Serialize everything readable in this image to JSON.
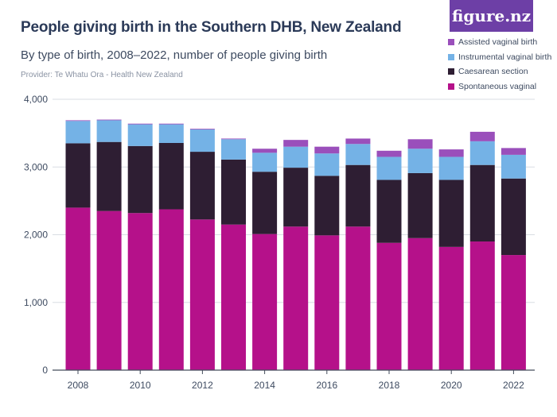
{
  "header": {
    "title": "People giving birth in the Southern DHB, New Zealand",
    "subtitle": "By type of birth, 2008–2022, number of people giving birth",
    "provider": "Provider: Te Whatu Ora - Health New Zealand",
    "logo_text": "figure.nz"
  },
  "colors": {
    "spontaneous": "#b5118a",
    "caesarean": "#2e1e33",
    "instrumental": "#74b2e6",
    "assisted": "#9a4fbb",
    "grid": "#d9dde3",
    "axis": "#444d5c",
    "brand": "#6d3fa6"
  },
  "chart_data": {
    "type": "bar",
    "stacked": true,
    "title": "People giving birth in the Southern DHB, New Zealand",
    "subtitle": "By type of birth, 2008–2022, number of people giving birth",
    "xlabel": "",
    "ylabel": "",
    "ylim": [
      0,
      4000
    ],
    "yticks": [
      0,
      1000,
      2000,
      3000,
      4000
    ],
    "ytick_labels": [
      "0",
      "1,000",
      "2,000",
      "3,000",
      "4,000"
    ],
    "xtick_labels": [
      "2008",
      "2010",
      "2012",
      "2014",
      "2016",
      "2018",
      "2020",
      "2022"
    ],
    "grid": true,
    "legend_position": "top-right",
    "categories": [
      "2008",
      "2009",
      "2010",
      "2011",
      "2012",
      "2013",
      "2014",
      "2015",
      "2016",
      "2017",
      "2018",
      "2019",
      "2020",
      "2021",
      "2022"
    ],
    "series": [
      {
        "name": "Spontaneous vaginal",
        "key": "spontaneous",
        "values": [
          2400,
          2350,
          2320,
          2375,
          2225,
          2150,
          2010,
          2120,
          1990,
          2120,
          1880,
          1950,
          1820,
          1900,
          1700
        ]
      },
      {
        "name": "Caesarean section",
        "key": "caesarean",
        "values": [
          950,
          1020,
          990,
          980,
          1000,
          960,
          920,
          870,
          880,
          910,
          930,
          960,
          990,
          1130,
          1130
        ]
      },
      {
        "name": "Instrumental vaginal birth",
        "key": "instrumental",
        "values": [
          330,
          320,
          320,
          275,
          330,
          300,
          280,
          310,
          330,
          310,
          340,
          360,
          340,
          350,
          350
        ]
      },
      {
        "name": "Assisted vaginal birth",
        "key": "assisted",
        "values": [
          10,
          10,
          10,
          10,
          10,
          10,
          60,
          100,
          100,
          80,
          90,
          140,
          110,
          140,
          100
        ]
      }
    ],
    "legend_order": [
      "Assisted vaginal birth",
      "Instrumental vaginal birth",
      "Caesarean section",
      "Spontaneous vaginal"
    ]
  }
}
